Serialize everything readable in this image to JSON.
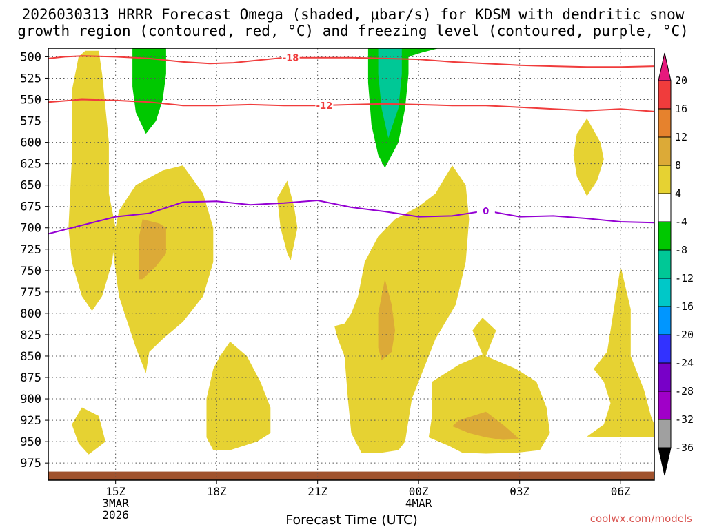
{
  "title_line1": "2026030313 HRRR Forecast Omega (shaded, μbar/s) for KDSM with dendritic snow",
  "title_line2": "growth region (contoured, red, °C) and freezing level (contoured, purple, °C)",
  "xlabel": "Forecast Time (UTC)",
  "credit": "coolwx.com/models",
  "chart_data": {
    "type": "time-height cross section",
    "x_ticks": [
      {
        "hour": 15,
        "lines": [
          "15Z",
          "3MAR",
          "2026"
        ]
      },
      {
        "hour": 18,
        "lines": [
          "18Z"
        ]
      },
      {
        "hour": 21,
        "lines": [
          "21Z"
        ]
      },
      {
        "hour": 24,
        "lines": [
          "00Z",
          "4MAR"
        ]
      },
      {
        "hour": 27,
        "lines": [
          "03Z"
        ]
      },
      {
        "hour": 30,
        "lines": [
          "06Z"
        ]
      }
    ],
    "xlim_hours": [
      13.0,
      31.0
    ],
    "y_ticks": [
      500,
      525,
      550,
      575,
      600,
      625,
      650,
      675,
      700,
      725,
      750,
      775,
      800,
      825,
      850,
      875,
      900,
      925,
      950,
      975
    ],
    "ylim_hpa": [
      490,
      995
    ],
    "colorbar": {
      "ticks": [
        "20",
        "16",
        "12",
        "8",
        "4",
        "-4",
        "-8",
        "-12",
        "-16",
        "-20",
        "-24",
        "-28",
        "-32",
        "-36"
      ],
      "colors": [
        "#f03c3c",
        "#e6822d",
        "#dcaa37",
        "#e6d232",
        "#ffffff",
        "#00c800",
        "#00c896",
        "#00c8c8",
        "#0096ff",
        "#3232ff",
        "#7800c8",
        "#a000c8",
        "#a0a0a0"
      ],
      "over_color": "#e6197d",
      "under_color": "#000000"
    },
    "contours_dgz": [
      {
        "label": "-18",
        "color": "#f03c3c",
        "points": [
          [
            13.0,
            502
          ],
          [
            13.5,
            500
          ],
          [
            14.0,
            499
          ],
          [
            15.0,
            500
          ],
          [
            16.0,
            502
          ],
          [
            17.0,
            506
          ],
          [
            17.8,
            508
          ],
          [
            18.5,
            507
          ],
          [
            19.5,
            503
          ],
          [
            20.0,
            501
          ],
          [
            22.0,
            501
          ],
          [
            23.0,
            502
          ],
          [
            24.0,
            503
          ],
          [
            25.0,
            506
          ],
          [
            26.0,
            508
          ],
          [
            27.0,
            510
          ],
          [
            28.0,
            511
          ],
          [
            29.0,
            512
          ],
          [
            30.0,
            512
          ],
          [
            31.0,
            511
          ]
        ]
      },
      {
        "label": "-12",
        "color": "#f03c3c",
        "points": [
          [
            13.0,
            553
          ],
          [
            14.0,
            550
          ],
          [
            15.0,
            551
          ],
          [
            16.0,
            553
          ],
          [
            17.0,
            557
          ],
          [
            18.0,
            557
          ],
          [
            19.0,
            556
          ],
          [
            20.0,
            557
          ],
          [
            21.0,
            557
          ],
          [
            22.0,
            556
          ],
          [
            23.0,
            555
          ],
          [
            24.0,
            556
          ],
          [
            25.0,
            557
          ],
          [
            26.0,
            557
          ],
          [
            27.0,
            559
          ],
          [
            28.0,
            561
          ],
          [
            29.0,
            563
          ],
          [
            30.0,
            561
          ],
          [
            31.0,
            564
          ]
        ]
      }
    ],
    "contours_freezing": [
      {
        "label": "0",
        "color": "#9400d3",
        "points": [
          [
            13.0,
            707
          ],
          [
            14.0,
            697
          ],
          [
            15.0,
            687
          ],
          [
            16.0,
            683
          ],
          [
            17.0,
            670
          ],
          [
            18.0,
            669
          ],
          [
            19.0,
            673
          ],
          [
            20.0,
            671
          ],
          [
            21.0,
            668
          ],
          [
            22.0,
            676
          ],
          [
            23.0,
            681
          ],
          [
            24.0,
            687
          ],
          [
            25.0,
            686
          ],
          [
            26.0,
            680
          ],
          [
            27.0,
            687
          ],
          [
            28.0,
            686
          ],
          [
            29.0,
            689
          ],
          [
            30.0,
            693
          ],
          [
            31.0,
            694
          ]
        ]
      }
    ],
    "omega_regions": [
      {
        "value": 4,
        "color": "#e6d232",
        "points": [
          [
            14.1,
            493
          ],
          [
            14.5,
            493
          ],
          [
            14.6,
            520
          ],
          [
            14.8,
            600
          ],
          [
            14.8,
            660
          ],
          [
            15.0,
            700
          ],
          [
            14.9,
            740
          ],
          [
            14.6,
            780
          ],
          [
            14.3,
            797
          ],
          [
            14.0,
            780
          ],
          [
            13.7,
            740
          ],
          [
            13.6,
            700
          ],
          [
            13.7,
            620
          ],
          [
            13.7,
            540
          ],
          [
            13.9,
            500
          ]
        ]
      },
      {
        "value": 4,
        "color": "#e6d232",
        "points": [
          [
            17.0,
            627
          ],
          [
            17.6,
            660
          ],
          [
            17.9,
            700
          ],
          [
            17.9,
            740
          ],
          [
            17.6,
            780
          ],
          [
            17.0,
            810
          ],
          [
            16.4,
            830
          ],
          [
            16.0,
            845
          ],
          [
            15.9,
            870
          ],
          [
            15.6,
            840
          ],
          [
            15.1,
            780
          ],
          [
            14.9,
            720
          ],
          [
            15.1,
            680
          ],
          [
            15.6,
            650
          ],
          [
            16.4,
            633
          ]
        ]
      },
      {
        "value": 8,
        "color": "#dcaa37",
        "points": [
          [
            15.8,
            690
          ],
          [
            16.3,
            695
          ],
          [
            16.5,
            700
          ],
          [
            16.5,
            730
          ],
          [
            16.2,
            745
          ],
          [
            15.8,
            760
          ],
          [
            15.7,
            760
          ],
          [
            15.7,
            740
          ],
          [
            15.7,
            710
          ]
        ]
      },
      {
        "value": 4,
        "color": "#e6d232",
        "points": [
          [
            20.1,
            645
          ],
          [
            20.3,
            675
          ],
          [
            20.4,
            700
          ],
          [
            20.2,
            738
          ],
          [
            20.1,
            730
          ],
          [
            19.9,
            700
          ],
          [
            19.8,
            665
          ]
        ]
      },
      {
        "value": 4,
        "color": "#e6d232",
        "points": [
          [
            25.0,
            627
          ],
          [
            25.4,
            650
          ],
          [
            25.5,
            690
          ],
          [
            25.4,
            740
          ],
          [
            25.1,
            790
          ],
          [
            24.5,
            830
          ],
          [
            24.2,
            860
          ],
          [
            23.8,
            900
          ],
          [
            23.6,
            950
          ],
          [
            23.4,
            960
          ],
          [
            22.9,
            963
          ],
          [
            22.3,
            963
          ],
          [
            22.0,
            940
          ],
          [
            21.9,
            900
          ],
          [
            21.8,
            850
          ],
          [
            21.6,
            830
          ],
          [
            21.5,
            815
          ],
          [
            21.8,
            812
          ],
          [
            22.0,
            800
          ],
          [
            22.2,
            780
          ],
          [
            22.4,
            740
          ],
          [
            22.8,
            710
          ],
          [
            23.3,
            690
          ],
          [
            24.0,
            675
          ],
          [
            24.5,
            660
          ],
          [
            24.8,
            640
          ]
        ]
      },
      {
        "value": 8,
        "color": "#dcaa37",
        "points": [
          [
            23.0,
            760
          ],
          [
            23.2,
            790
          ],
          [
            23.3,
            820
          ],
          [
            23.2,
            845
          ],
          [
            22.9,
            855
          ],
          [
            22.8,
            840
          ],
          [
            22.8,
            800
          ]
        ]
      },
      {
        "value": 4,
        "color": "#e6d232",
        "points": [
          [
            18.4,
            833
          ],
          [
            18.9,
            850
          ],
          [
            19.3,
            880
          ],
          [
            19.6,
            910
          ],
          [
            19.6,
            940
          ],
          [
            19.2,
            950
          ],
          [
            18.4,
            960
          ],
          [
            17.9,
            960
          ],
          [
            17.7,
            945
          ],
          [
            17.7,
            900
          ],
          [
            17.9,
            865
          ],
          [
            18.1,
            850
          ]
        ]
      },
      {
        "value": 4,
        "color": "#e6d232",
        "points": [
          [
            25.9,
            805
          ],
          [
            26.3,
            820
          ],
          [
            26.0,
            850
          ],
          [
            26.9,
            865
          ],
          [
            27.5,
            880
          ],
          [
            27.8,
            910
          ],
          [
            27.9,
            940
          ],
          [
            27.6,
            960
          ],
          [
            26.9,
            963
          ],
          [
            26.0,
            964
          ],
          [
            25.3,
            963
          ],
          [
            24.9,
            955
          ],
          [
            24.3,
            945
          ],
          [
            24.4,
            920
          ],
          [
            24.4,
            880
          ],
          [
            25.2,
            860
          ],
          [
            25.9,
            848
          ],
          [
            25.6,
            820
          ]
        ]
      },
      {
        "value": 8,
        "color": "#dcaa37",
        "points": [
          [
            26.0,
            915
          ],
          [
            26.5,
            930
          ],
          [
            27.0,
            947
          ],
          [
            26.5,
            948
          ],
          [
            26.0,
            945
          ],
          [
            25.5,
            940
          ],
          [
            25.0,
            932
          ],
          [
            25.2,
            925
          ]
        ]
      },
      {
        "value": 4,
        "color": "#e6d232",
        "points": [
          [
            30.0,
            745
          ],
          [
            30.3,
            795
          ],
          [
            30.3,
            850
          ],
          [
            30.7,
            890
          ],
          [
            30.9,
            920
          ],
          [
            31.0,
            930
          ],
          [
            31.0,
            945
          ],
          [
            30.0,
            945
          ],
          [
            29.0,
            944
          ],
          [
            29.5,
            930
          ],
          [
            29.7,
            905
          ],
          [
            29.5,
            880
          ],
          [
            29.2,
            865
          ],
          [
            29.6,
            845
          ],
          [
            29.7,
            820
          ]
        ]
      },
      {
        "value": 4,
        "color": "#e6d232",
        "points": [
          [
            14.0,
            910
          ],
          [
            14.5,
            920
          ],
          [
            14.7,
            950
          ],
          [
            14.2,
            965
          ],
          [
            13.9,
            952
          ],
          [
            13.7,
            930
          ]
        ]
      },
      {
        "value": 4,
        "color": "#e6d232",
        "points": [
          [
            29.0,
            572
          ],
          [
            29.4,
            600
          ],
          [
            29.5,
            620
          ],
          [
            29.3,
            645
          ],
          [
            29.0,
            663
          ],
          [
            28.7,
            640
          ],
          [
            28.6,
            615
          ],
          [
            28.7,
            590
          ]
        ]
      },
      {
        "value": -4,
        "color": "#00c800",
        "points": [
          [
            15.5,
            490
          ],
          [
            16.5,
            490
          ],
          [
            16.5,
            520
          ],
          [
            16.4,
            550
          ],
          [
            16.2,
            575
          ],
          [
            15.9,
            590
          ],
          [
            15.6,
            565
          ],
          [
            15.5,
            535
          ]
        ]
      },
      {
        "value": -4,
        "color": "#00c800",
        "points": [
          [
            22.5,
            490
          ],
          [
            23.7,
            490
          ],
          [
            23.7,
            520
          ],
          [
            23.6,
            560
          ],
          [
            23.4,
            600
          ],
          [
            23.0,
            630
          ],
          [
            22.8,
            615
          ],
          [
            22.6,
            580
          ],
          [
            22.5,
            530
          ]
        ]
      },
      {
        "value": -8,
        "color": "#00c896",
        "points": [
          [
            22.8,
            490
          ],
          [
            23.5,
            490
          ],
          [
            23.5,
            520
          ],
          [
            23.4,
            560
          ],
          [
            23.1,
            595
          ],
          [
            22.9,
            560
          ],
          [
            22.8,
            520
          ]
        ]
      },
      {
        "value": -4,
        "color": "#00c800",
        "points": [
          [
            23.6,
            490
          ],
          [
            24.6,
            490
          ],
          [
            24.1,
            495
          ],
          [
            23.7,
            500
          ]
        ]
      }
    ],
    "surface_level_hpa": 985
  }
}
